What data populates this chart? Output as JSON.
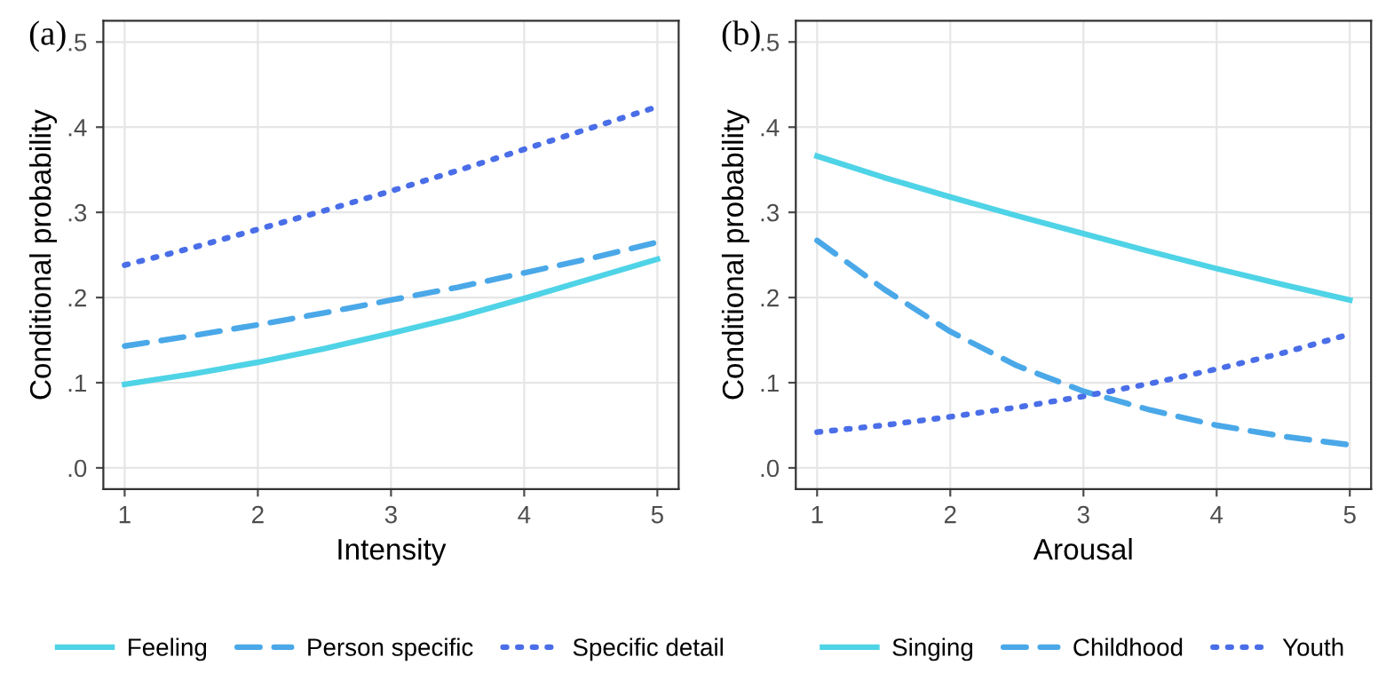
{
  "chart_data": [
    {
      "type": "line",
      "title": "(a)",
      "xlabel": "Intensity",
      "ylabel": "Conditional probability",
      "x": [
        1,
        1.5,
        2,
        2.5,
        3,
        3.5,
        4,
        4.5,
        5
      ],
      "series": [
        {
          "name": "Feeling",
          "color": "#4fd3e6",
          "line_style": "solid",
          "values": [
            0.098,
            0.11,
            0.124,
            0.14,
            0.158,
            0.177,
            0.199,
            0.222,
            0.245
          ]
        },
        {
          "name": "Person specific",
          "color": "#4aa8e8",
          "line_style": "dashed",
          "values": [
            0.143,
            0.155,
            0.168,
            0.182,
            0.197,
            0.212,
            0.229,
            0.246,
            0.265
          ]
        },
        {
          "name": "Specific detail",
          "color": "#4a6ee8",
          "line_style": "dotted",
          "values": [
            0.238,
            0.258,
            0.28,
            0.302,
            0.325,
            0.349,
            0.374,
            0.399,
            0.424
          ]
        }
      ],
      "xlim": [
        0.84,
        5.16
      ],
      "xticks": [
        1,
        2,
        3,
        4,
        5
      ],
      "ylim": [
        -0.025,
        0.525
      ],
      "yticks": [
        {
          "value": 0,
          "label": ".0"
        },
        {
          "value": 0.1,
          "label": ".1"
        },
        {
          "value": 0.2,
          "label": ".2"
        },
        {
          "value": 0.3,
          "label": ".3"
        },
        {
          "value": 0.4,
          "label": ".4"
        },
        {
          "value": 0.5,
          "label": ".5"
        }
      ],
      "grid": true,
      "legend": "bottom"
    },
    {
      "type": "line",
      "title": "(b)",
      "xlabel": "Arousal",
      "ylabel": "Conditional probability",
      "x": [
        1,
        1.5,
        2,
        2.5,
        3,
        3.5,
        4,
        4.5,
        5
      ],
      "series": [
        {
          "name": "Singing",
          "color": "#4fd3e6",
          "line_style": "solid",
          "values": [
            0.366,
            0.341,
            0.318,
            0.296,
            0.275,
            0.254,
            0.234,
            0.215,
            0.197
          ]
        },
        {
          "name": "Childhood",
          "color": "#4aa8e8",
          "line_style": "dashed",
          "values": [
            0.267,
            0.21,
            0.16,
            0.12,
            0.09,
            0.068,
            0.05,
            0.037,
            0.027
          ]
        },
        {
          "name": "Youth",
          "color": "#4a6ee8",
          "line_style": "dotted",
          "values": [
            0.042,
            0.05,
            0.06,
            0.071,
            0.084,
            0.099,
            0.116,
            0.135,
            0.157
          ]
        }
      ],
      "xlim": [
        0.84,
        5.16
      ],
      "xticks": [
        1,
        2,
        3,
        4,
        5
      ],
      "ylim": [
        -0.025,
        0.525
      ],
      "yticks": [
        {
          "value": 0,
          "label": ".0"
        },
        {
          "value": 0.1,
          "label": ".1"
        },
        {
          "value": 0.2,
          "label": ".2"
        },
        {
          "value": 0.3,
          "label": ".3"
        },
        {
          "value": 0.4,
          "label": ".4"
        },
        {
          "value": 0.5,
          "label": ".5"
        }
      ],
      "grid": true,
      "legend": "bottom"
    }
  ]
}
